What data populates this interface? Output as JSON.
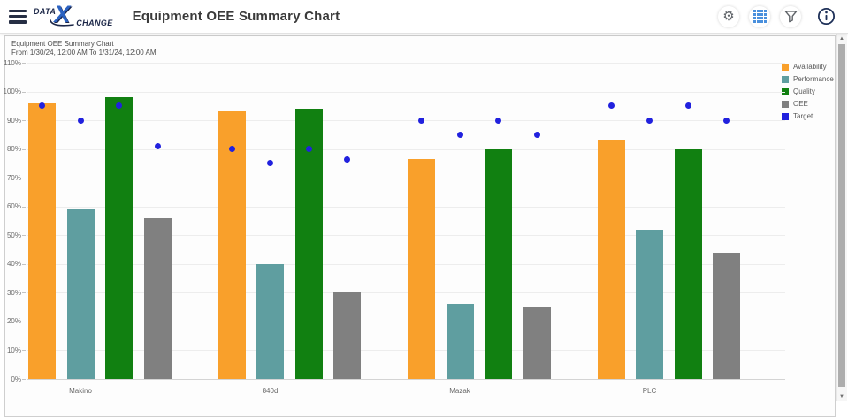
{
  "header": {
    "logo": {
      "data": "DATA",
      "x": "X",
      "change": "CHANGE"
    },
    "title": "Equipment OEE Summary Chart",
    "actions": {
      "settings_icon": "gear-icon",
      "grid_icon": "grid-icon",
      "filter_icon": "funnel-icon",
      "info_icon": "info-icon"
    }
  },
  "chart_panel": {
    "title": "Equipment OEE Summary Chart",
    "subtitle": "From 1/30/24, 12:00 AM To 1/31/24, 12:00 AM"
  },
  "chart_data": {
    "type": "bar",
    "title": "Equipment OEE Summary Chart",
    "subtitle": "From 1/30/24, 12:00 AM To 1/31/24, 12:00 AM",
    "categories": [
      "Makino",
      "840d",
      "Mazak",
      "PLC"
    ],
    "series": [
      {
        "name": "Availability",
        "color": "#F9A02B",
        "values": [
          96,
          93,
          76.5,
          83
        ]
      },
      {
        "name": "Performance",
        "color": "#5F9EA0",
        "values": [
          59,
          40,
          26,
          52
        ]
      },
      {
        "name": "Quality",
        "color": "#118011",
        "values": [
          98,
          94,
          80,
          80
        ]
      },
      {
        "name": "OEE",
        "color": "#808080",
        "values": [
          56,
          30,
          25,
          44
        ]
      }
    ],
    "target_series": {
      "name": "Target",
      "color": "#2121DE",
      "values_per_category": [
        [
          95,
          90,
          95,
          81
        ],
        [
          80,
          75,
          80,
          76.5
        ],
        [
          90,
          85,
          90,
          85
        ],
        [
          95,
          90,
          95,
          90
        ]
      ]
    },
    "ylim": [
      0,
      110
    ],
    "yticks": [
      0,
      10,
      20,
      30,
      40,
      50,
      60,
      70,
      80,
      90,
      100,
      110
    ],
    "ytick_suffix": "%",
    "grid": true,
    "legend_position": "top-right"
  }
}
